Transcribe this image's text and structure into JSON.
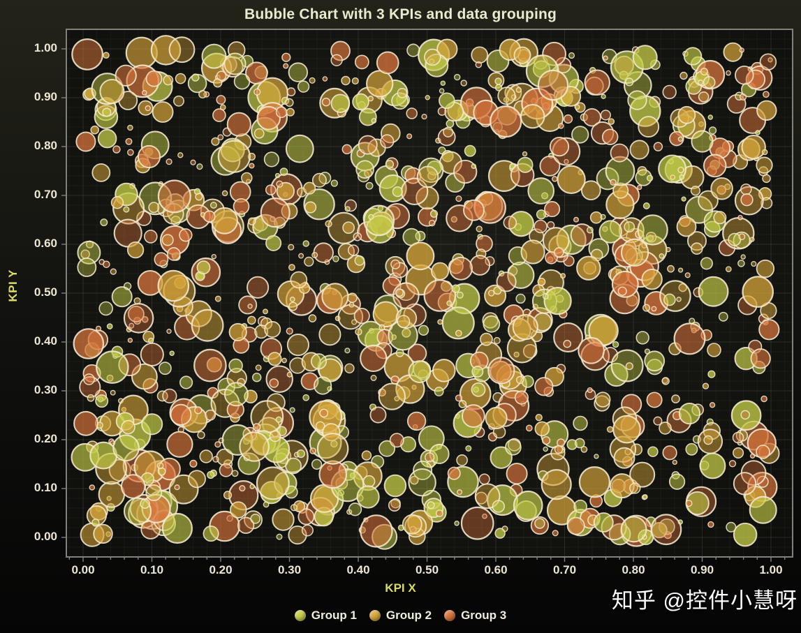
{
  "chart_data": {
    "type": "bubble",
    "title": "Bubble Chart with 3 KPIs and data grouping",
    "xlabel": "KPI X",
    "ylabel": "KPI Y",
    "xlim": [
      0,
      1
    ],
    "ylim": [
      0,
      1
    ],
    "x_ticks": [
      "0.00",
      "0.10",
      "0.20",
      "0.30",
      "0.40",
      "0.50",
      "0.60",
      "0.70",
      "0.80",
      "0.90",
      "1.00"
    ],
    "y_ticks": [
      "0.00",
      "0.10",
      "0.20",
      "0.30",
      "0.40",
      "0.50",
      "0.60",
      "0.70",
      "0.80",
      "0.90",
      "1.00"
    ],
    "major_tick_step": 0.1,
    "minor_tick_step": 0.02,
    "grid": "major+minor",
    "legend_position": "bottom-center",
    "series": [
      {
        "name": "Group 1",
        "color": "#c3cc48",
        "count": 400,
        "seed": 13
      },
      {
        "name": "Group 2",
        "color": "#d6a53a",
        "count": 400,
        "seed": 29
      },
      {
        "name": "Group 3",
        "color": "#d7743c",
        "count": 400,
        "seed": 47
      }
    ],
    "distribution": {
      "x": "uniform(0,1)",
      "y": "uniform(0,1)",
      "radius_px_min": 3,
      "radius_px_max": 23,
      "radius_bias": 1.7
    }
  },
  "watermark": {
    "text": "知乎 @控件小慧呀"
  },
  "colors": {
    "page_bg_top": "#232319",
    "page_bg_mid": "#121210",
    "page_bg_bottom": "#050505",
    "plot_bg_center": "#1c1c17",
    "plot_bg_edge": "#0d0d0b",
    "grid_major": "rgba(230,230,215,0.12)",
    "grid_minor": "rgba(230,230,215,0.045)",
    "axis_line": "#83817b",
    "tick_label": "#ece6d3",
    "axis_label": "#dbdc66",
    "title": "#e9ebd0",
    "legend_text": "#f2eedd",
    "watermark": "#ffffff",
    "bubble_stroke": "#f4ead0"
  }
}
